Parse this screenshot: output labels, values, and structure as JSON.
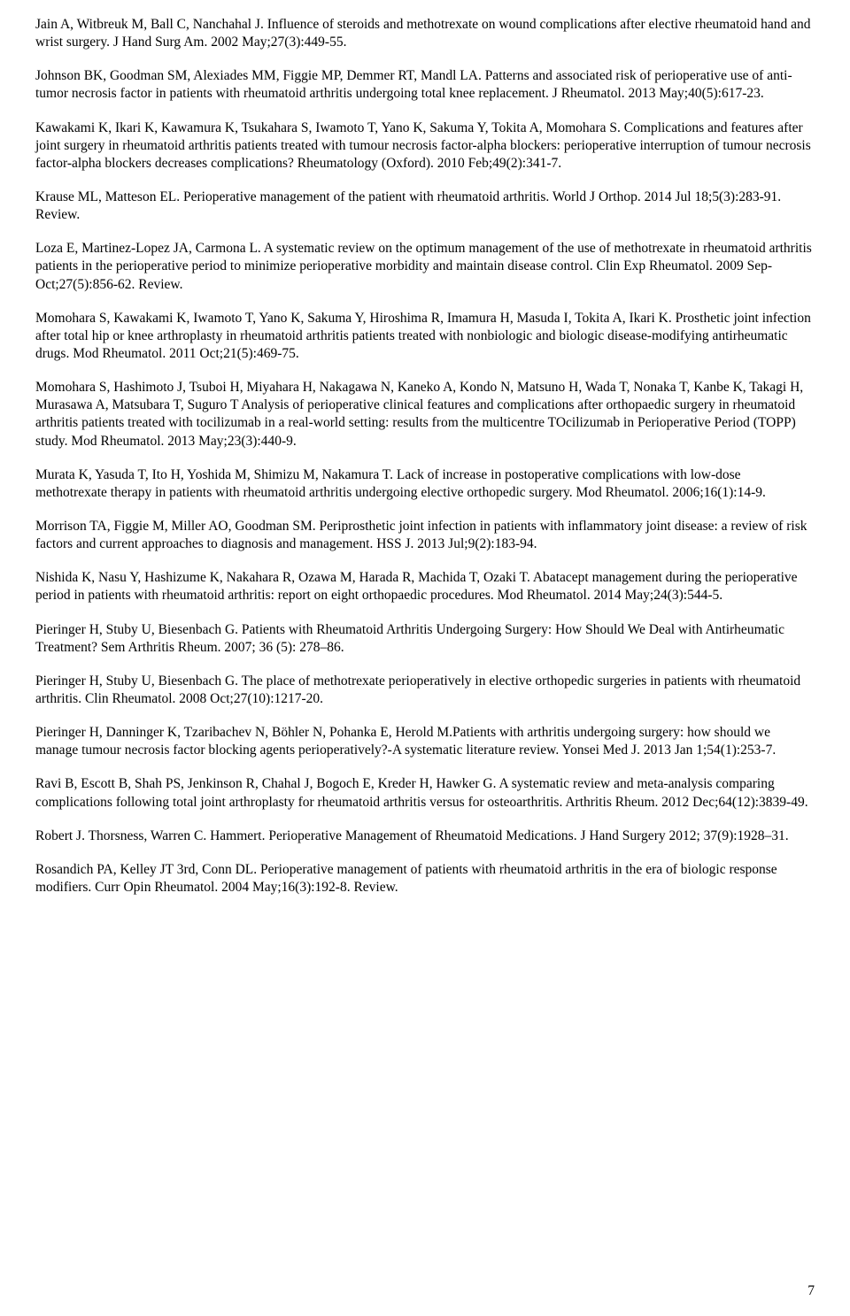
{
  "references": [
    "Jain A, Witbreuk M, Ball C, Nanchahal J. Influence of steroids and methotrexate on wound complications after elective rheumatoid hand and wrist surgery. J Hand Surg Am. 2002 May;27(3):449-55.",
    "Johnson BK, Goodman SM, Alexiades MM, Figgie MP, Demmer RT, Mandl LA. Patterns and associated risk of perioperative use of anti-tumor necrosis factor in patients with rheumatoid arthritis undergoing total knee replacement. J Rheumatol. 2013 May;40(5):617-23.",
    "Kawakami K, Ikari K, Kawamura K, Tsukahara S, Iwamoto T, Yano K, Sakuma Y, Tokita A, Momohara S. Complications and features after joint surgery in rheumatoid arthritis patients treated with tumour necrosis factor-alpha blockers: perioperative interruption of tumour necrosis factor-alpha blockers decreases complications? Rheumatology (Oxford). 2010 Feb;49(2):341-7.",
    "Krause ML, Matteson EL. Perioperative management of the patient with rheumatoid arthritis. World J Orthop. 2014 Jul 18;5(3):283-91. Review.",
    "Loza E, Martinez-Lopez JA, Carmona L.  A systematic review on the optimum management of the use of methotrexate in rheumatoid arthritis patients in the perioperative period to minimize perioperative morbidity and maintain disease control. Clin Exp Rheumatol. 2009 Sep-Oct;27(5):856-62. Review.",
    "Momohara S, Kawakami K, Iwamoto T, Yano K, Sakuma Y, Hiroshima R, Imamura H, Masuda I, Tokita A, Ikari K. Prosthetic joint infection after total hip or knee arthroplasty in rheumatoid arthritis patients treated with nonbiologic and biologic disease-modifying antirheumatic drugs. Mod Rheumatol. 2011 Oct;21(5):469-75.",
    "Momohara S, Hashimoto J, Tsuboi H, Miyahara H, Nakagawa N, Kaneko A, Kondo N, Matsuno H, Wada T, Nonaka T, Kanbe K, Takagi H, Murasawa A, Matsubara T, Suguro T Analysis of perioperative clinical features and complications after orthopaedic surgery in rheumatoid arthritis patients treated with tocilizumab in a real-world setting: results from the multicentre TOcilizumab in Perioperative Period (TOPP) study. Mod Rheumatol. 2013 May;23(3):440-9.",
    "Murata K, Yasuda T, Ito H, Yoshida M, Shimizu M, Nakamura T. Lack of increase in postoperative complications with low-dose methotrexate therapy in patients with rheumatoid arthritis undergoing elective orthopedic surgery. Mod Rheumatol. 2006;16(1):14-9.",
    "Morrison TA, Figgie M, Miller AO, Goodman SM. Periprosthetic joint infection in patients with inflammatory joint disease: a review of risk factors and current approaches to diagnosis and management. HSS J. 2013 Jul;9(2):183-94.",
    "Nishida K, Nasu Y, Hashizume K, Nakahara R, Ozawa M, Harada R, Machida T, Ozaki T.\nAbatacept management during the perioperative period in patients with rheumatoid arthritis: report on eight orthopaedic procedures. Mod Rheumatol. 2014 May;24(3):544-5.",
    "Pieringer H, Stuby U, Biesenbach G. Patients with Rheumatoid Arthritis Undergoing Surgery: How Should We Deal with Antirheumatic Treatment? Sem Arthritis Rheum. 2007; 36 (5): 278–86.",
    "Pieringer H, Stuby U, Biesenbach G. The place of methotrexate perioperatively in elective orthopedic surgeries in patients with rheumatoid arthritis. Clin Rheumatol. 2008 Oct;27(10):1217-20.",
    "Pieringer H, Danninger K, Tzaribachev N, Böhler N, Pohanka E, Herold M.Patients with arthritis undergoing surgery: how should we manage tumour necrosis factor blocking agents perioperatively?-A systematic literature review. Yonsei Med J. 2013 Jan 1;54(1):253-7.",
    "Ravi B, Escott B, Shah PS, Jenkinson R, Chahal J, Bogoch E, Kreder H, Hawker G. A systematic review and meta-analysis comparing complications following total joint arthroplasty for rheumatoid arthritis versus for osteoarthritis. Arthritis Rheum. 2012 Dec;64(12):3839-49.",
    "Robert J. Thorsness, Warren C. Hammert. Perioperative Management of Rheumatoid Medications. J Hand Surgery 2012; 37(9):1928–31.",
    "Rosandich PA, Kelley JT 3rd, Conn DL. Perioperative management of patients with rheumatoid arthritis in the era of biologic response modifiers. Curr Opin Rheumatol. 2004 May;16(3):192-8. Review."
  ],
  "pageNumber": "7"
}
